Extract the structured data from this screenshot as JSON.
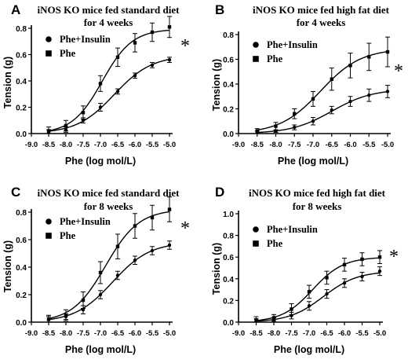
{
  "chart_data": [
    {
      "type": "line",
      "panel_label": "A",
      "title_lines": [
        "iNOS KO mice fed standard diet",
        "for 4 weeks"
      ],
      "xlabel": "Phe (log mol/L)",
      "ylabel": "Tension (g)",
      "xlim": [
        -9.0,
        -5.0
      ],
      "ylim": [
        0.0,
        0.8
      ],
      "xticks": [
        "-9.0",
        "-8.5",
        "-8.0",
        "-7.5",
        "-7.0",
        "-6.5",
        "-6.0",
        "-5.5",
        "-5.0"
      ],
      "yticks": [
        "0.0",
        "0.2",
        "0.4",
        "0.6",
        "0.8"
      ],
      "significance": "*",
      "legend_placement": "top-left",
      "series": [
        {
          "name": "Phe+Insulin",
          "marker": "circle",
          "x": [
            -8.5,
            -8.0,
            -7.5,
            -7.0,
            -6.5,
            -6.0,
            -5.5,
            -5.0
          ],
          "y": [
            0.01,
            0.03,
            0.1,
            0.2,
            0.32,
            0.44,
            0.52,
            0.56
          ],
          "err": [
            0.02,
            0.02,
            0.02,
            0.03,
            0.02,
            0.02,
            0.02,
            0.02
          ]
        },
        {
          "name": "Phe",
          "marker": "square",
          "x": [
            -8.5,
            -8.0,
            -7.5,
            -7.0,
            -6.5,
            -6.0,
            -5.5,
            -5.0
          ],
          "y": [
            0.02,
            0.06,
            0.16,
            0.38,
            0.58,
            0.69,
            0.77,
            0.81
          ],
          "err": [
            0.03,
            0.04,
            0.05,
            0.06,
            0.07,
            0.07,
            0.07,
            0.08
          ]
        }
      ]
    },
    {
      "type": "line",
      "panel_label": "B",
      "title_lines": [
        "iNOS KO mice fed high fat diet",
        "for 4 weeks"
      ],
      "xlabel": "Phe (log mol/L)",
      "ylabel": "Tension (g)",
      "xlim": [
        -9.0,
        -5.0
      ],
      "ylim": [
        0.0,
        0.8
      ],
      "xticks": [
        "-9.0",
        "-8.5",
        "-8.0",
        "-7.5",
        "-7.0",
        "-6.5",
        "-6.0",
        "-5.5",
        "-5.0"
      ],
      "yticks": [
        "0.0",
        "0.2",
        "0.4",
        "0.6",
        "0.8"
      ],
      "significance": "*",
      "legend_placement": "top-left",
      "series": [
        {
          "name": "Phe+Insulin",
          "marker": "circle",
          "x": [
            -8.5,
            -8.0,
            -7.5,
            -7.0,
            -6.5,
            -6.0,
            -5.5,
            -5.0
          ],
          "y": [
            0.01,
            0.02,
            0.05,
            0.1,
            0.19,
            0.26,
            0.31,
            0.34
          ],
          "err": [
            0.01,
            0.01,
            0.02,
            0.03,
            0.03,
            0.04,
            0.05,
            0.05
          ]
        },
        {
          "name": "Phe",
          "marker": "square",
          "x": [
            -8.5,
            -8.0,
            -7.5,
            -7.0,
            -6.5,
            -6.0,
            -5.5,
            -5.0
          ],
          "y": [
            0.02,
            0.06,
            0.16,
            0.28,
            0.44,
            0.55,
            0.62,
            0.66
          ],
          "err": [
            0.02,
            0.03,
            0.04,
            0.06,
            0.09,
            0.1,
            0.11,
            0.12
          ]
        }
      ]
    },
    {
      "type": "line",
      "panel_label": "C",
      "title_lines": [
        "iNOS KO mice fed standard diet",
        "for 8 weeks"
      ],
      "xlabel": "Phe (log mol/L)",
      "ylabel": "Tension (g)",
      "xlim": [
        -9.0,
        -5.0
      ],
      "ylim": [
        0.0,
        0.8
      ],
      "xticks": [
        "-9.0",
        "-8.5",
        "-8.0",
        "-7.5",
        "-7.0",
        "-6.5",
        "-6.0",
        "-5.5",
        "-5.0"
      ],
      "yticks": [
        "0.0",
        "0.2",
        "0.4",
        "0.6",
        "0.8"
      ],
      "significance": "*",
      "legend_placement": "top-left",
      "series": [
        {
          "name": "Phe+Insulin",
          "marker": "circle",
          "x": [
            -8.5,
            -8.0,
            -7.5,
            -7.0,
            -6.5,
            -6.0,
            -5.5,
            -5.0
          ],
          "y": [
            0.02,
            0.04,
            0.09,
            0.2,
            0.34,
            0.45,
            0.52,
            0.56
          ],
          "err": [
            0.02,
            0.02,
            0.03,
            0.03,
            0.03,
            0.03,
            0.03,
            0.03
          ]
        },
        {
          "name": "Phe",
          "marker": "square",
          "x": [
            -8.5,
            -8.0,
            -7.5,
            -7.0,
            -6.5,
            -6.0,
            -5.5,
            -5.0
          ],
          "y": [
            0.02,
            0.05,
            0.16,
            0.36,
            0.55,
            0.7,
            0.76,
            0.82
          ],
          "err": [
            0.03,
            0.04,
            0.06,
            0.08,
            0.09,
            0.09,
            0.09,
            0.09
          ]
        }
      ]
    },
    {
      "type": "line",
      "panel_label": "D",
      "title_lines": [
        "iNOS KO mice fed high fat diet",
        "for 8 weeks"
      ],
      "xlabel": "Phe (log mol/L)",
      "ylabel": "Tension (g)",
      "xlim": [
        -9.0,
        -5.0
      ],
      "ylim": [
        0.0,
        1.0
      ],
      "xticks": [
        "-9.0",
        "-8.5",
        "-8.0",
        "-7.5",
        "-7.0",
        "-6.5",
        "-6.0",
        "-5.5",
        "-5.0"
      ],
      "yticks": [
        "0.0",
        "0.2",
        "0.4",
        "0.6",
        "0.8",
        "1.0"
      ],
      "significance": "*",
      "legend_placement": "top-left",
      "series": [
        {
          "name": "Phe+Insulin",
          "marker": "circle",
          "x": [
            -8.5,
            -8.0,
            -7.5,
            -7.0,
            -6.5,
            -6.0,
            -5.5,
            -5.0
          ],
          "y": [
            0.01,
            0.02,
            0.06,
            0.15,
            0.26,
            0.36,
            0.42,
            0.47
          ],
          "err": [
            0.02,
            0.02,
            0.03,
            0.04,
            0.04,
            0.04,
            0.04,
            0.04
          ]
        },
        {
          "name": "Phe",
          "marker": "square",
          "x": [
            -8.5,
            -8.0,
            -7.5,
            -7.0,
            -6.5,
            -6.0,
            -5.5,
            -5.0
          ],
          "y": [
            0.02,
            0.04,
            0.12,
            0.28,
            0.41,
            0.53,
            0.58,
            0.6
          ],
          "err": [
            0.03,
            0.03,
            0.05,
            0.06,
            0.06,
            0.06,
            0.06,
            0.06
          ]
        }
      ]
    }
  ]
}
